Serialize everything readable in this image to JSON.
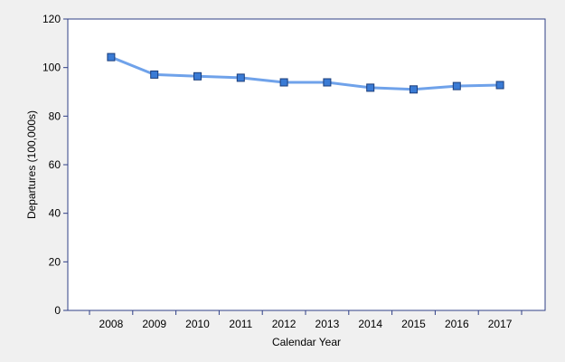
{
  "chart_data": {
    "type": "line",
    "title": "",
    "xlabel": "Calendar Year",
    "ylabel": "Departures (100,000s)",
    "categories": [
      "2008",
      "2009",
      "2010",
      "2011",
      "2012",
      "2013",
      "2014",
      "2015",
      "2016",
      "2017"
    ],
    "series": [
      {
        "values": [
          104.3,
          97.1,
          96.4,
          95.8,
          93.9,
          93.9,
          91.7,
          91.0,
          92.4,
          92.8
        ],
        "color": "#6fa2ea",
        "marker_color": "#3a7bd5",
        "marker": "square"
      }
    ],
    "ylim": [
      0,
      120
    ],
    "yticks": [
      0,
      20,
      40,
      60,
      80,
      100,
      120
    ],
    "grid": false,
    "legend": "none",
    "plot_background": "#ffffff",
    "page_background": "#f0f0f0",
    "axis_color": "#2f3f86"
  }
}
